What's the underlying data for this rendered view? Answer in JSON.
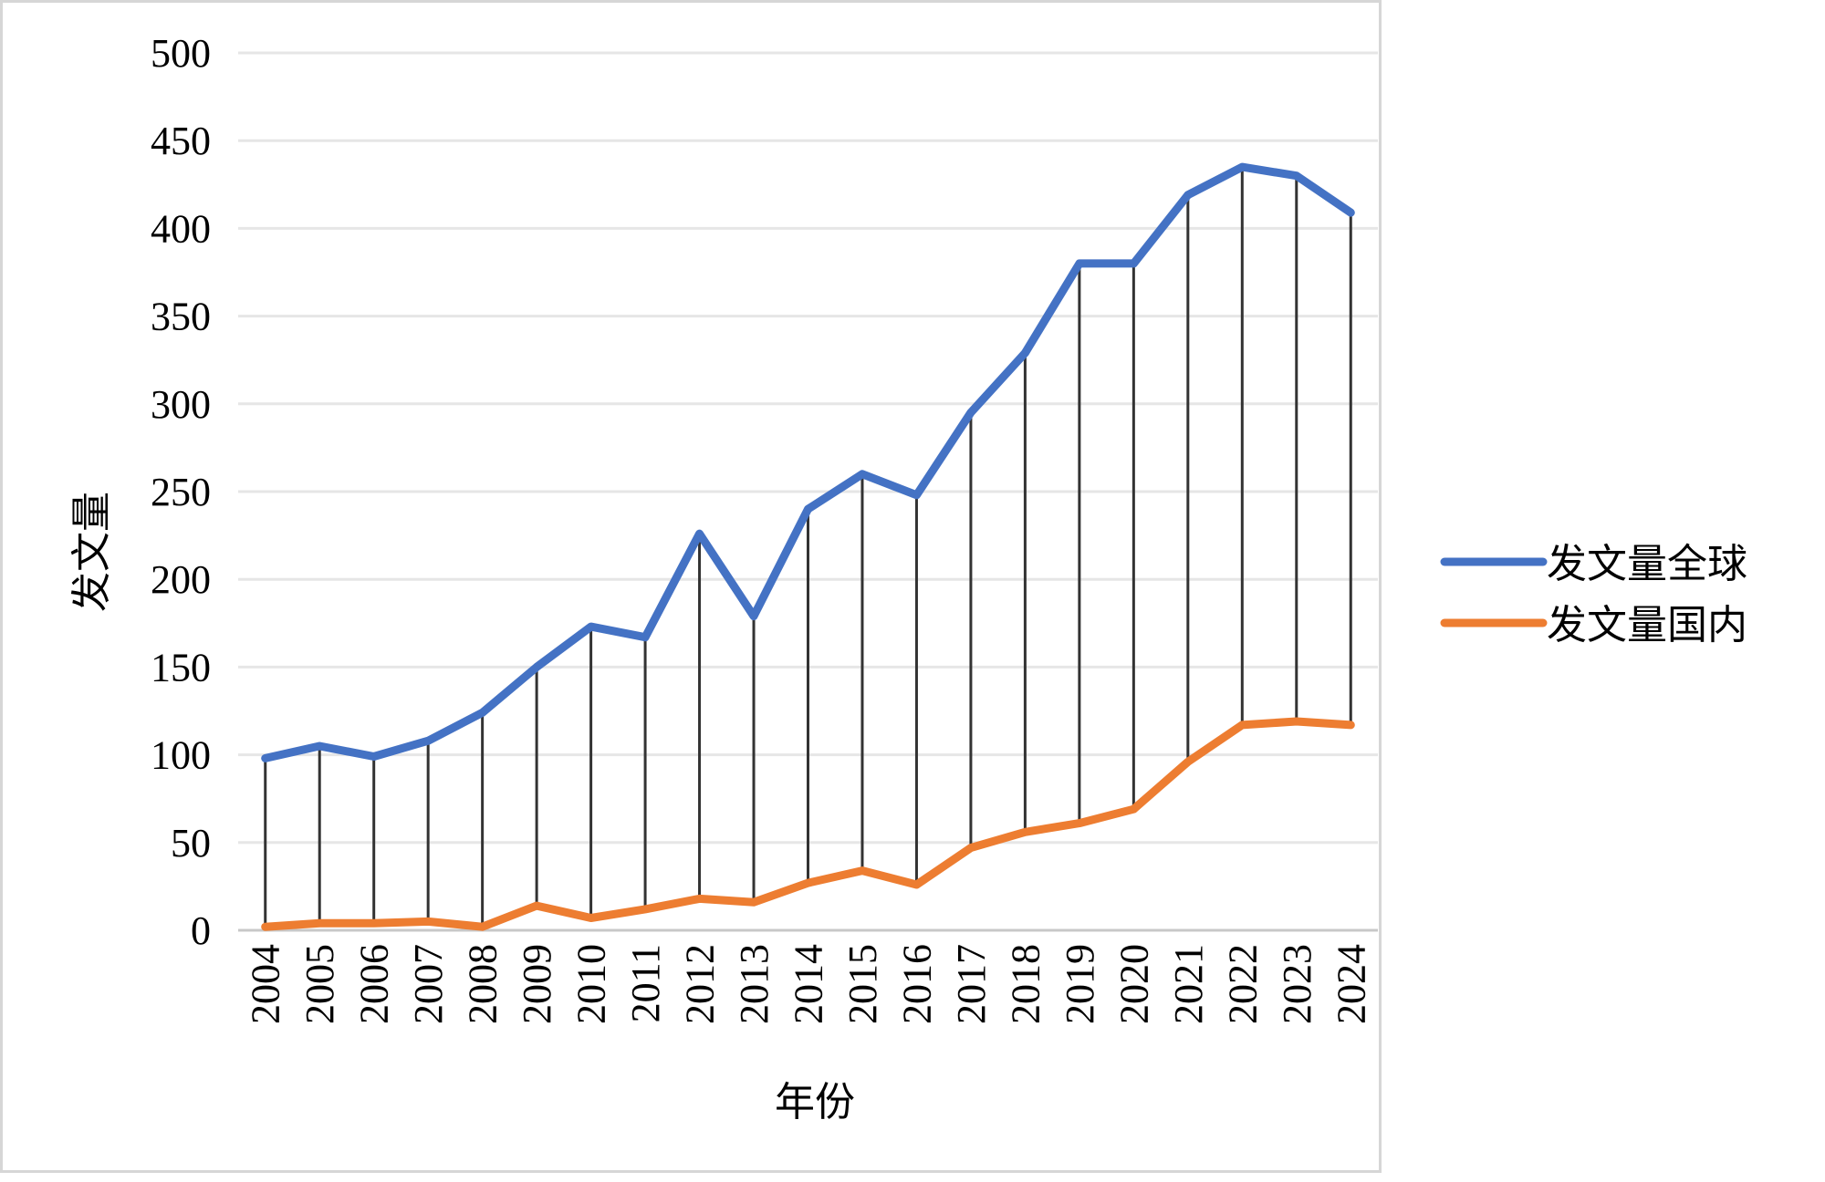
{
  "colors": {
    "global_series": "#4472C4",
    "domestic_series": "#ED7D31",
    "grid": "#e6e6e6",
    "drop_line": "#333333"
  },
  "chart_data": {
    "type": "line",
    "title": "",
    "xlabel": "年份",
    "ylabel": "发文量",
    "ylim": [
      0,
      500
    ],
    "yticks": [
      "0",
      "50",
      "100",
      "150",
      "200",
      "250",
      "300",
      "350",
      "400",
      "450",
      "500"
    ],
    "categories": [
      "2004",
      "2005",
      "2006",
      "2007",
      "2008",
      "2009",
      "2010",
      "2011",
      "2012",
      "2013",
      "2014",
      "2015",
      "2016",
      "2017",
      "2018",
      "2019",
      "2020",
      "2021",
      "2022",
      "2023",
      "2024"
    ],
    "series": [
      {
        "name": "发文量全球",
        "values": [
          98,
          105,
          99,
          108,
          124,
          150,
          173,
          167,
          226,
          179,
          240,
          260,
          248,
          295,
          329,
          380,
          380,
          419,
          435,
          430,
          409
        ]
      },
      {
        "name": "发文量国内",
        "values": [
          2,
          4,
          4,
          5,
          2,
          14,
          7,
          12,
          18,
          16,
          27,
          34,
          26,
          47,
          56,
          61,
          69,
          96,
          117,
          119,
          117
        ]
      }
    ],
    "drop_lines": true,
    "grid": true,
    "legend_position": "right"
  }
}
